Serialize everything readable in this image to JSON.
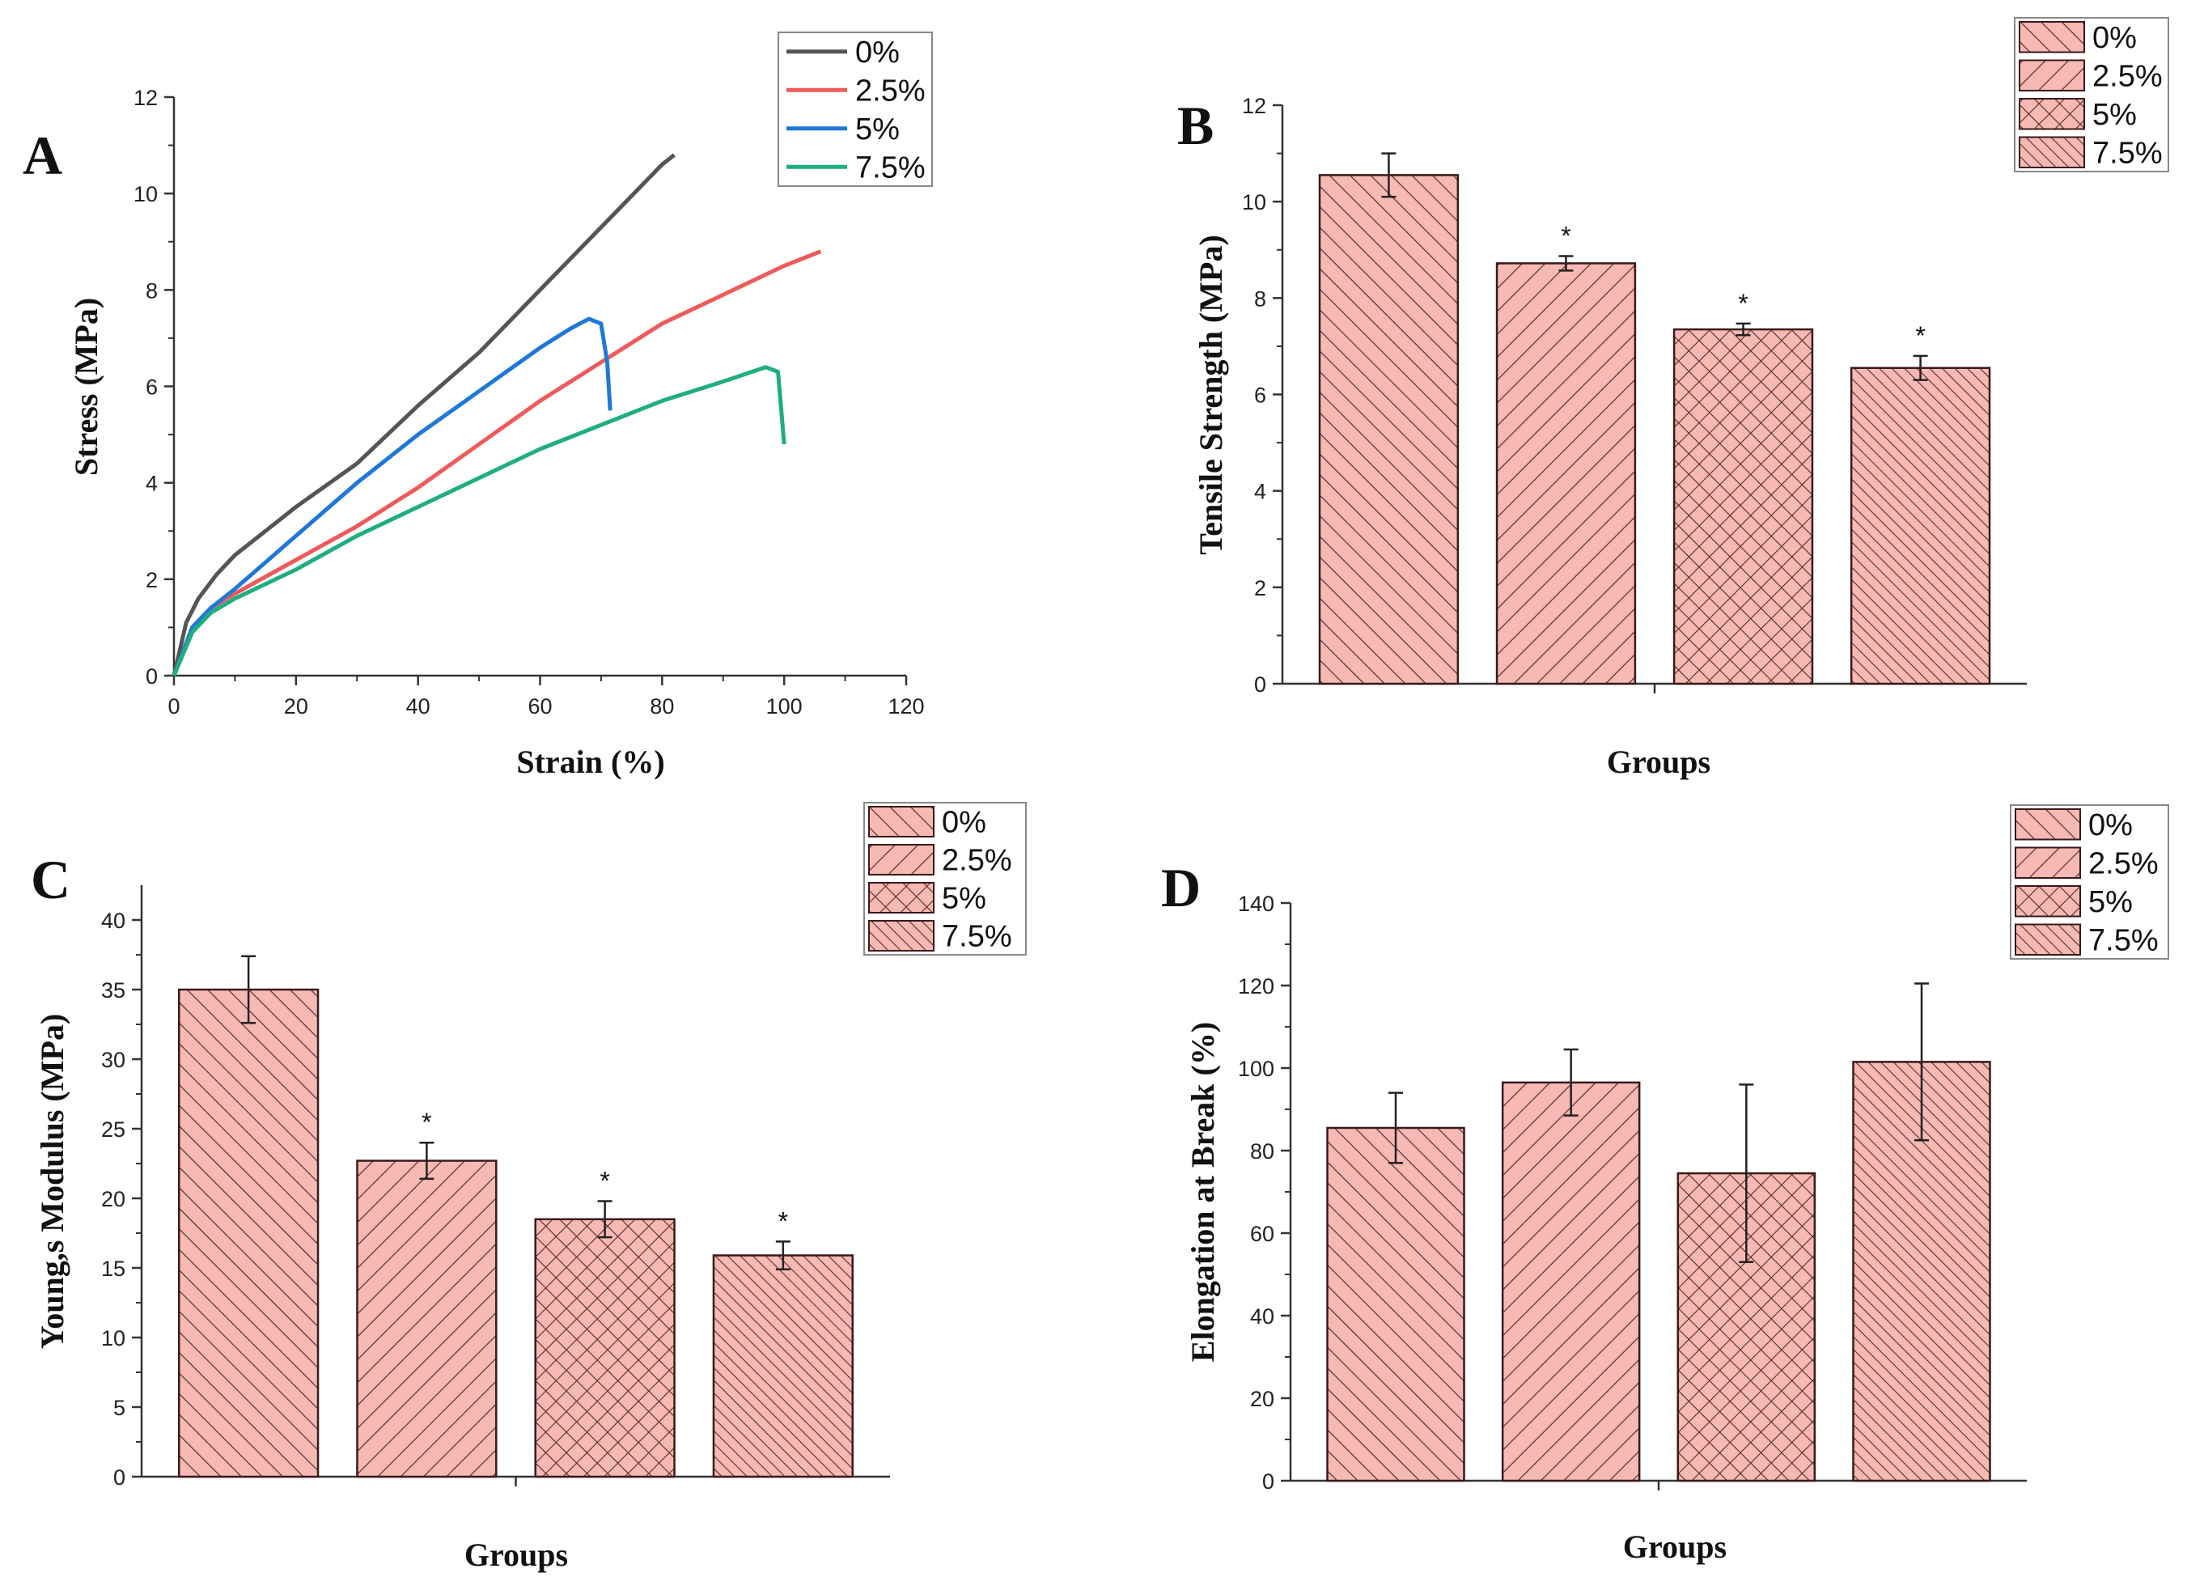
{
  "colors": {
    "series_0": "#555555",
    "series_2_5": "#f05a5a",
    "series_5": "#1f78d8",
    "series_7_5": "#1fae7e",
    "bar_fill": "#f7b9b4",
    "hatch": "#5a2a2a"
  },
  "chart_data": [
    {
      "panel": "A",
      "type": "line",
      "xlabel": "Strain (%)",
      "ylabel": "Stress (MPa)",
      "xlim": [
        0,
        120
      ],
      "ylim": [
        0,
        12
      ],
      "xticks": [
        "0",
        "20",
        "40",
        "60",
        "80",
        "100",
        "120"
      ],
      "yticks": [
        "0",
        "2",
        "4",
        "6",
        "8",
        "10",
        "12"
      ],
      "legend": [
        "0%",
        "2.5%",
        "5%",
        "7.5%"
      ],
      "series": [
        {
          "name": "0%",
          "x": [
            0,
            2,
            4,
            7,
            10,
            15,
            20,
            30,
            40,
            50,
            60,
            70,
            80,
            82
          ],
          "y": [
            0,
            1.1,
            1.6,
            2.1,
            2.5,
            3.0,
            3.5,
            4.4,
            5.6,
            6.7,
            8.0,
            9.3,
            10.6,
            10.8
          ]
        },
        {
          "name": "2.5%",
          "x": [
            0,
            3,
            6,
            10,
            20,
            30,
            40,
            50,
            60,
            70,
            80,
            90,
            100,
            106
          ],
          "y": [
            0,
            1.0,
            1.4,
            1.7,
            2.4,
            3.1,
            3.9,
            4.8,
            5.7,
            6.5,
            7.3,
            7.9,
            8.5,
            8.8
          ]
        },
        {
          "name": "5%",
          "x": [
            0,
            3,
            6,
            10,
            20,
            30,
            40,
            50,
            60,
            65,
            68,
            70,
            71,
            71.5
          ],
          "y": [
            0,
            1.0,
            1.4,
            1.8,
            2.9,
            4.0,
            5.0,
            5.9,
            6.8,
            7.2,
            7.4,
            7.3,
            6.5,
            5.5
          ]
        },
        {
          "name": "7.5%",
          "x": [
            0,
            3,
            6,
            10,
            20,
            30,
            40,
            50,
            60,
            70,
            80,
            90,
            97,
            99,
            100
          ],
          "y": [
            0,
            0.9,
            1.3,
            1.6,
            2.2,
            2.9,
            3.5,
            4.1,
            4.7,
            5.2,
            5.7,
            6.1,
            6.4,
            6.3,
            4.8
          ]
        }
      ]
    },
    {
      "panel": "B",
      "type": "bar",
      "xlabel": "Groups",
      "ylabel": "Tensile Strength (MPa)",
      "ylim": [
        0,
        12
      ],
      "yticks": [
        "0",
        "2",
        "4",
        "6",
        "8",
        "10",
        "12"
      ],
      "categories": [
        "0%",
        "2.5%",
        "5%",
        "7.5%"
      ],
      "values": [
        10.55,
        8.72,
        7.35,
        6.55
      ],
      "errors": [
        0.45,
        0.15,
        0.12,
        0.25
      ],
      "significance": [
        "",
        "*",
        "*",
        "*"
      ],
      "legend": [
        "0%",
        "2.5%",
        "5%",
        "7.5%"
      ]
    },
    {
      "panel": "C",
      "type": "bar",
      "xlabel": "Groups",
      "ylabel": "Young,s Modulus (MPa)",
      "ylim": [
        0,
        42.5
      ],
      "yticks": [
        "0",
        "5",
        "10",
        "15",
        "20",
        "25",
        "30",
        "35",
        "40"
      ],
      "categories": [
        "0%",
        "2.5%",
        "5%",
        "7.5%"
      ],
      "values": [
        35.0,
        22.7,
        18.5,
        15.9
      ],
      "errors": [
        2.4,
        1.3,
        1.3,
        1.0
      ],
      "significance": [
        "",
        "*",
        "*",
        "*"
      ],
      "legend": [
        "0%",
        "2.5%",
        "5%",
        "7.5%"
      ]
    },
    {
      "panel": "D",
      "type": "bar",
      "xlabel": "Groups",
      "ylabel": "Elongation at Break (%)",
      "ylim": [
        0,
        140
      ],
      "yticks": [
        "0",
        "20",
        "40",
        "60",
        "80",
        "100",
        "120",
        "140"
      ],
      "categories": [
        "0%",
        "2.5%",
        "5%",
        "7.5%"
      ],
      "values": [
        85.5,
        96.5,
        74.5,
        101.5
      ],
      "errors": [
        8.5,
        8.0,
        21.5,
        19.0
      ],
      "significance": [
        "",
        "",
        "",
        ""
      ],
      "legend": [
        "0%",
        "2.5%",
        "5%",
        "7.5%"
      ]
    }
  ]
}
